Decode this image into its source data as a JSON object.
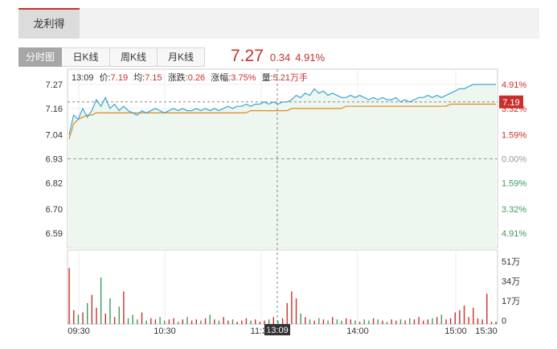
{
  "stock_tab": {
    "label": "龙利得"
  },
  "tabs": [
    {
      "label": "分时图",
      "active": true
    },
    {
      "label": "日K线",
      "active": false
    },
    {
      "label": "周K线",
      "active": false
    },
    {
      "label": "月K线",
      "active": false
    }
  ],
  "quote": {
    "price": "7.27",
    "change": "0.34",
    "change_pct": "4.91%"
  },
  "info_bar": {
    "time": "13:09",
    "price_label": "价:",
    "price": "7.19",
    "avg_label": "均:",
    "avg": "7.15",
    "chg_label": "涨跌:",
    "chg": "0.26",
    "pct_label": "涨幅:",
    "pct": "3.75%",
    "vol_label": "量:",
    "vol": "5.21万手"
  },
  "colors": {
    "up": "#c9302c",
    "down": "#3c9b5b",
    "price_line": "#3aa6d6",
    "avg_line": "#e08a1e",
    "fill": "#edf6ef"
  },
  "chart_data": {
    "type": "line",
    "prev_close": 6.93,
    "y_ticks": [
      "7.27",
      "7.16",
      "7.04",
      "6.93",
      "6.82",
      "6.70",
      "6.59"
    ],
    "pct_ticks": [
      "4.91%",
      "3.32%",
      "1.59%",
      "0.00%",
      "1.59%",
      "3.32%",
      "4.91%"
    ],
    "x_ticks": [
      "09:30",
      "10:30",
      "11:30",
      "14:00",
      "15:00",
      "15:30"
    ],
    "cursor": {
      "time": "13:09",
      "price_tag": "7.19"
    },
    "volume_ticks": [
      "51万",
      "34万",
      "17万",
      "0"
    ],
    "price": [
      7.04,
      7.13,
      7.11,
      7.16,
      7.12,
      7.15,
      7.2,
      7.17,
      7.21,
      7.16,
      7.18,
      7.15,
      7.17,
      7.15,
      7.14,
      7.13,
      7.15,
      7.14,
      7.15,
      7.16,
      7.15,
      7.14,
      7.15,
      7.16,
      7.15,
      7.16,
      7.15,
      7.15,
      7.16,
      7.15,
      7.16,
      7.15,
      7.16,
      7.15,
      7.16,
      7.17,
      7.16,
      7.17,
      7.17,
      7.18,
      7.17,
      7.18,
      7.18,
      7.19,
      7.18,
      7.19,
      7.18,
      7.19,
      7.19,
      7.2,
      7.22,
      7.21,
      7.23,
      7.22,
      7.25,
      7.23,
      7.24,
      7.22,
      7.23,
      7.22,
      7.21,
      7.21,
      7.22,
      7.21,
      7.22,
      7.21,
      7.2,
      7.21,
      7.2,
      7.21,
      7.2,
      7.2,
      7.21,
      7.19,
      7.2,
      7.19,
      7.2,
      7.21,
      7.21,
      7.22,
      7.21,
      7.22,
      7.21,
      7.22,
      7.23,
      7.24,
      7.25,
      7.25,
      7.26,
      7.27,
      7.27,
      7.27,
      7.27,
      7.27,
      7.27
    ],
    "avg": [
      7.02,
      7.09,
      7.11,
      7.12,
      7.13,
      7.13,
      7.14,
      7.14,
      7.14,
      7.14,
      7.14,
      7.14,
      7.14,
      7.14,
      7.14,
      7.14,
      7.14,
      7.14,
      7.14,
      7.14,
      7.14,
      7.14,
      7.14,
      7.14,
      7.14,
      7.14,
      7.14,
      7.14,
      7.14,
      7.14,
      7.14,
      7.14,
      7.14,
      7.14,
      7.14,
      7.14,
      7.14,
      7.14,
      7.14,
      7.14,
      7.15,
      7.15,
      7.15,
      7.15,
      7.15,
      7.15,
      7.15,
      7.15,
      7.15,
      7.16,
      7.16,
      7.16,
      7.16,
      7.16,
      7.16,
      7.16,
      7.16,
      7.16,
      7.16,
      7.16,
      7.16,
      7.17,
      7.17,
      7.17,
      7.17,
      7.17,
      7.17,
      7.17,
      7.17,
      7.17,
      7.17,
      7.17,
      7.17,
      7.17,
      7.17,
      7.17,
      7.17,
      7.17,
      7.17,
      7.17,
      7.17,
      7.17,
      7.17,
      7.17,
      7.18,
      7.18,
      7.18,
      7.18,
      7.18,
      7.18,
      7.18,
      7.18,
      7.18,
      7.18,
      7.18
    ],
    "volume": [
      48,
      12,
      8,
      10,
      18,
      25,
      14,
      40,
      9,
      22,
      6,
      15,
      28,
      5,
      8,
      4,
      10,
      3,
      5,
      4,
      6,
      3,
      4,
      5,
      2,
      4,
      6,
      3,
      4,
      3,
      5,
      8,
      4,
      3,
      6,
      3,
      4,
      2,
      3,
      5,
      3,
      4,
      2,
      3,
      4,
      6,
      3,
      5,
      18,
      28,
      22,
      9,
      6,
      4,
      3,
      5,
      4,
      3,
      6,
      4,
      3,
      5,
      4,
      3,
      2,
      4,
      3,
      5,
      4,
      3,
      2,
      4,
      3,
      4,
      3,
      5,
      4,
      6,
      3,
      4,
      5,
      6,
      8,
      4,
      5,
      10,
      12,
      16,
      6,
      14,
      5,
      4,
      26,
      2,
      2
    ]
  }
}
